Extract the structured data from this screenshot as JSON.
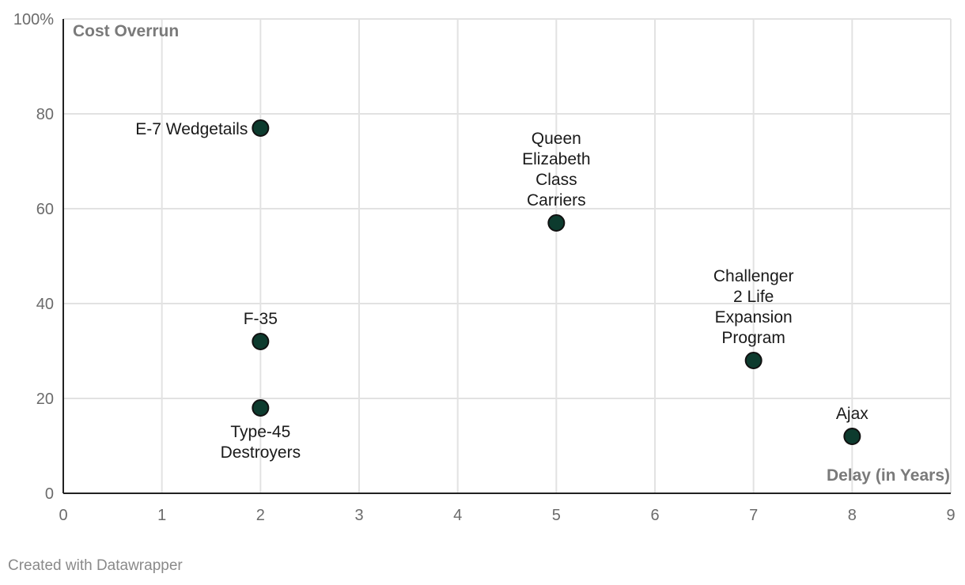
{
  "chart_data": {
    "type": "scatter",
    "title": "",
    "xlabel": "Delay (in Years)",
    "ylabel": "Cost Overrun",
    "xlim": [
      0,
      9
    ],
    "ylim": [
      0,
      100
    ],
    "x_ticks": [
      "0",
      "1",
      "2",
      "3",
      "4",
      "5",
      "6",
      "7",
      "8",
      "9"
    ],
    "y_ticks": [
      "0",
      "20",
      "40",
      "60",
      "80",
      "100%"
    ],
    "grid": true,
    "point_color": "#0d3b2e",
    "points": [
      {
        "name": "E-7 Wedgetails",
        "lines": [
          "E-7 Wedgetails"
        ],
        "x": 2,
        "y": 77,
        "label_pos": "left"
      },
      {
        "name": "F-35",
        "lines": [
          "F-35"
        ],
        "x": 2,
        "y": 32,
        "label_pos": "top"
      },
      {
        "name": "Type-45 Destroyers",
        "lines": [
          "Type-45",
          "Destroyers"
        ],
        "x": 2,
        "y": 18,
        "label_pos": "bottom"
      },
      {
        "name": "Queen Elizabeth Class Carriers",
        "lines": [
          "Queen",
          "Elizabeth",
          "Class",
          "Carriers"
        ],
        "x": 5,
        "y": 57,
        "label_pos": "top"
      },
      {
        "name": "Challenger 2 Life Expansion Program",
        "lines": [
          "Challenger",
          "2 Life",
          "Expansion",
          "Program"
        ],
        "x": 7,
        "y": 28,
        "label_pos": "top"
      },
      {
        "name": "Ajax",
        "lines": [
          "Ajax"
        ],
        "x": 8,
        "y": 12,
        "label_pos": "top"
      }
    ]
  },
  "footer": {
    "credit": "Created with Datawrapper"
  }
}
